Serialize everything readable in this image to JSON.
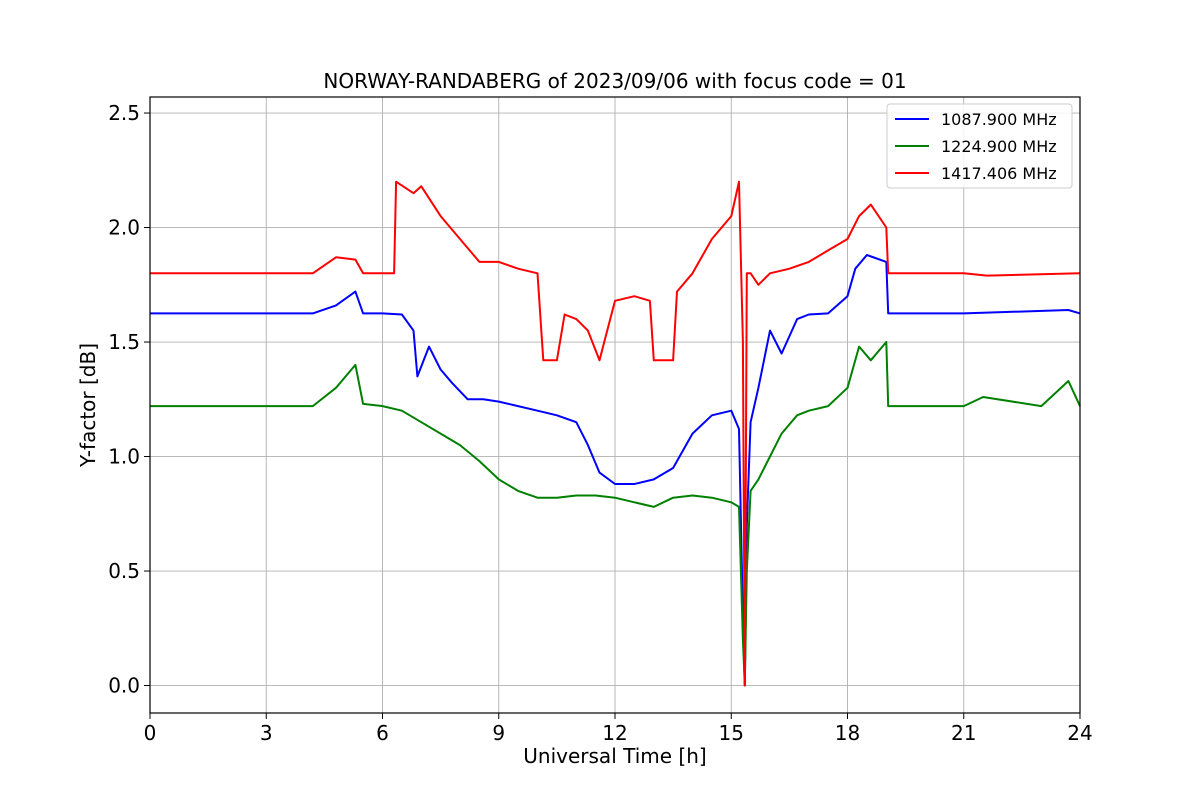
{
  "chart_data": {
    "type": "line",
    "title": "NORWAY-RANDABERG of 2023/09/06 with focus code = 01",
    "xlabel": "Universal Time [h]",
    "ylabel": "Y-factor [dB]",
    "xlim": [
      0,
      24
    ],
    "ylim": [
      -0.12,
      2.57
    ],
    "xticks": [
      0,
      3,
      6,
      9,
      12,
      15,
      18,
      21,
      24
    ],
    "yticks": [
      0.0,
      0.5,
      1.0,
      1.5,
      2.0,
      2.5
    ],
    "ytick_labels": [
      "0.0",
      "0.5",
      "1.0",
      "1.5",
      "2.0",
      "2.5"
    ],
    "grid": true,
    "legend_position": "top-right",
    "series": [
      {
        "name": "1087.900 MHz",
        "color": "#0000ff",
        "x": [
          0,
          3,
          4.2,
          4.8,
          5.3,
          5.5,
          6.0,
          6.5,
          6.8,
          6.9,
          7.2,
          7.5,
          7.8,
          8.2,
          8.6,
          9.0,
          9.5,
          10.0,
          10.5,
          11.0,
          11.3,
          11.6,
          12.0,
          12.5,
          13.0,
          13.5,
          14.0,
          14.5,
          15.0,
          15.2,
          15.3,
          15.35,
          15.4,
          15.5,
          15.7,
          16.0,
          16.3,
          16.7,
          17.0,
          17.5,
          18.0,
          18.2,
          18.5,
          19.0,
          19.05,
          21.0,
          23.7,
          24.0
        ],
        "y": [
          1.625,
          1.625,
          1.625,
          1.66,
          1.72,
          1.625,
          1.625,
          1.62,
          1.55,
          1.35,
          1.48,
          1.38,
          1.32,
          1.25,
          1.25,
          1.24,
          1.22,
          1.2,
          1.18,
          1.15,
          1.05,
          0.93,
          0.88,
          0.88,
          0.9,
          0.95,
          1.1,
          1.18,
          1.2,
          1.12,
          0.3,
          0.0,
          0.7,
          1.15,
          1.3,
          1.55,
          1.45,
          1.6,
          1.62,
          1.625,
          1.7,
          1.82,
          1.88,
          1.85,
          1.625,
          1.625,
          1.64,
          1.625
        ]
      },
      {
        "name": "1224.900 MHz",
        "color": "#008000",
        "x": [
          0,
          3,
          4.2,
          4.8,
          5.3,
          5.5,
          6.0,
          6.5,
          7.0,
          7.5,
          8.0,
          8.5,
          9.0,
          9.5,
          10.0,
          10.5,
          11.0,
          11.5,
          12.0,
          12.5,
          13.0,
          13.5,
          14.0,
          14.5,
          15.0,
          15.2,
          15.3,
          15.35,
          15.4,
          15.5,
          15.7,
          16.0,
          16.3,
          16.7,
          17.0,
          17.5,
          18.0,
          18.3,
          18.6,
          19.0,
          19.05,
          21.0,
          21.5,
          23.0,
          23.7,
          24.0
        ],
        "y": [
          1.22,
          1.22,
          1.22,
          1.3,
          1.4,
          1.23,
          1.22,
          1.2,
          1.15,
          1.1,
          1.05,
          0.98,
          0.9,
          0.85,
          0.82,
          0.82,
          0.83,
          0.83,
          0.82,
          0.8,
          0.78,
          0.82,
          0.83,
          0.82,
          0.8,
          0.78,
          0.2,
          0.0,
          0.5,
          0.85,
          0.9,
          1.0,
          1.1,
          1.18,
          1.2,
          1.22,
          1.3,
          1.48,
          1.42,
          1.5,
          1.22,
          1.22,
          1.26,
          1.22,
          1.33,
          1.22
        ]
      },
      {
        "name": "1417.406 MHz",
        "color": "#ff0000",
        "x": [
          0,
          3,
          4.2,
          4.8,
          5.3,
          5.5,
          6.0,
          6.3,
          6.35,
          6.8,
          7.0,
          7.5,
          8.0,
          8.5,
          9.0,
          9.5,
          10.0,
          10.15,
          10.2,
          10.5,
          10.7,
          11.0,
          11.3,
          11.6,
          12.0,
          12.5,
          12.9,
          13.0,
          13.5,
          13.6,
          14.0,
          14.5,
          15.0,
          15.2,
          15.3,
          15.35,
          15.4,
          15.5,
          15.7,
          16.0,
          16.5,
          17.0,
          17.5,
          18.0,
          18.3,
          18.6,
          19.0,
          19.05,
          21.0,
          21.6,
          24.0
        ],
        "y": [
          1.8,
          1.8,
          1.8,
          1.87,
          1.86,
          1.8,
          1.8,
          1.8,
          2.2,
          2.15,
          2.18,
          2.05,
          1.95,
          1.85,
          1.85,
          1.82,
          1.8,
          1.42,
          1.42,
          1.42,
          1.62,
          1.6,
          1.55,
          1.42,
          1.68,
          1.7,
          1.68,
          1.42,
          1.42,
          1.72,
          1.8,
          1.95,
          2.05,
          2.2,
          1.5,
          0.0,
          1.8,
          1.8,
          1.75,
          1.8,
          1.82,
          1.85,
          1.9,
          1.95,
          2.05,
          2.1,
          2.0,
          1.8,
          1.8,
          1.79,
          1.8
        ]
      }
    ]
  }
}
